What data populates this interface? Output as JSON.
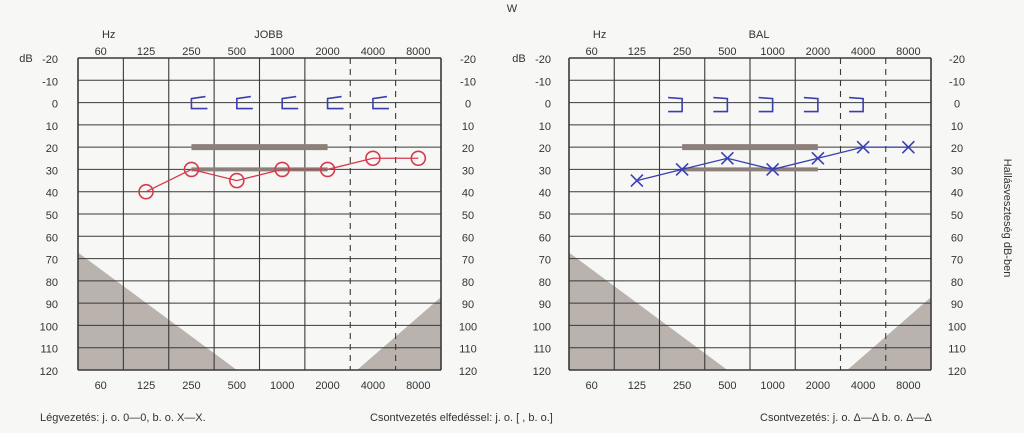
{
  "page": {
    "top_mark": "W",
    "side_label": "Hallásveszteség dB-ben",
    "legend": {
      "air": "Légvezetés: j. o. 0—0, b. o. X—X.",
      "masked_bone": "Csontvezetés elfedéssel: j. o. [         , b. o.]",
      "bone": "Csontvezetés: j. o. Δ—Δ  b. o. Δ—Δ"
    }
  },
  "chart_data": [
    {
      "type": "line",
      "title": "JOBB",
      "hz_label": "Hz",
      "db_label": "dB",
      "x_ticks": [
        "60",
        "125",
        "250",
        "500",
        "1000",
        "2000",
        "4000",
        "8000"
      ],
      "y_ticks": [
        "-20",
        "-10",
        "0",
        "10",
        "20",
        "30",
        "40",
        "50",
        "60",
        "70",
        "80",
        "90",
        "100",
        "110",
        "120"
      ],
      "ylim": [
        -20,
        120
      ],
      "y_inverted": true,
      "grid": true,
      "shaded_band_db": [
        20,
        30
      ],
      "series": [
        {
          "marker": "circle",
          "color": "#d63a4e",
          "x": [
            "125",
            "250",
            "500",
            "1000",
            "2000",
            "4000",
            "8000"
          ],
          "values": [
            40,
            30,
            35,
            30,
            30,
            25,
            25
          ]
        },
        {
          "marker": "bracket-left",
          "color": "#3a3fb0",
          "x": [
            "250",
            "500",
            "1000",
            "2000",
            "4000"
          ],
          "values": [
            0,
            0,
            0,
            0,
            0
          ]
        }
      ]
    },
    {
      "type": "line",
      "title": "BAL",
      "hz_label": "Hz",
      "db_label": "dB",
      "x_ticks": [
        "60",
        "125",
        "250",
        "500",
        "1000",
        "2000",
        "4000",
        "8000"
      ],
      "y_ticks": [
        "-20",
        "-10",
        "0",
        "10",
        "20",
        "30",
        "40",
        "50",
        "60",
        "70",
        "80",
        "90",
        "100",
        "110",
        "120"
      ],
      "ylim": [
        -20,
        120
      ],
      "y_inverted": true,
      "grid": true,
      "shaded_band_db": [
        20,
        30
      ],
      "series": [
        {
          "marker": "cross",
          "color": "#3a3fb0",
          "x": [
            "125",
            "250",
            "500",
            "1000",
            "2000",
            "4000",
            "8000"
          ],
          "values": [
            35,
            30,
            25,
            30,
            25,
            20,
            20
          ]
        },
        {
          "marker": "bracket-right",
          "color": "#3a3fb0",
          "x": [
            "250",
            "500",
            "1000",
            "2000",
            "4000"
          ],
          "values": [
            0,
            0,
            0,
            0,
            0
          ]
        }
      ]
    }
  ]
}
